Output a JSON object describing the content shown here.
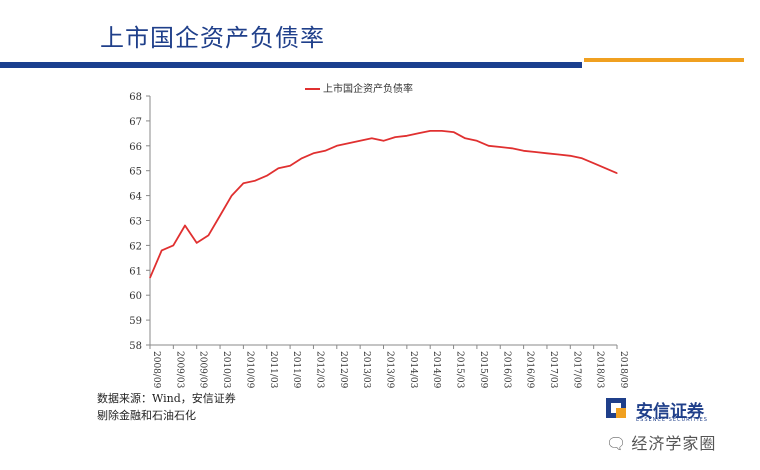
{
  "header": {
    "title": "上市国企资产负债率"
  },
  "colors": {
    "title": "#1f3f8a",
    "bar_blue": "#1a3f8f",
    "bar_orange": "#f0a020",
    "series": "#e03030",
    "axis": "#888888"
  },
  "chart_data": {
    "type": "line",
    "title": "",
    "xlabel": "",
    "ylabel": "",
    "ylim": [
      58,
      68
    ],
    "yticks": [
      58,
      59,
      60,
      61,
      62,
      63,
      64,
      65,
      66,
      67,
      68
    ],
    "grid": false,
    "legend_position": "top-center",
    "x_tick_labels": [
      "2008/09",
      "2009/03",
      "2009/09",
      "2010/03",
      "2010/09",
      "2011/03",
      "2011/09",
      "2012/03",
      "2012/09",
      "2013/03",
      "2013/09",
      "2014/03",
      "2014/09",
      "2015/03",
      "2015/09",
      "2016/03",
      "2016/09",
      "2017/03",
      "2017/09",
      "2018/03",
      "2018/09"
    ],
    "series": [
      {
        "name": "上市国企资产负债率",
        "x": [
          "2008/09",
          "2008/12",
          "2009/03",
          "2009/06",
          "2009/09",
          "2009/12",
          "2010/03",
          "2010/06",
          "2010/09",
          "2010/12",
          "2011/03",
          "2011/06",
          "2011/09",
          "2011/12",
          "2012/03",
          "2012/06",
          "2012/09",
          "2012/12",
          "2013/03",
          "2013/06",
          "2013/09",
          "2013/12",
          "2014/03",
          "2014/06",
          "2014/09",
          "2014/12",
          "2015/03",
          "2015/06",
          "2015/09",
          "2015/12",
          "2016/03",
          "2016/06",
          "2016/09",
          "2016/12",
          "2017/03",
          "2017/06",
          "2017/09",
          "2017/12",
          "2018/03",
          "2018/06",
          "2018/09"
        ],
        "values": [
          60.7,
          61.8,
          62.0,
          62.8,
          62.1,
          62.4,
          63.2,
          64.0,
          64.5,
          64.6,
          64.8,
          65.1,
          65.2,
          65.5,
          65.7,
          65.8,
          66.0,
          66.1,
          66.2,
          66.3,
          66.2,
          66.35,
          66.4,
          66.5,
          66.6,
          66.6,
          66.55,
          66.3,
          66.2,
          66.0,
          65.95,
          65.9,
          65.8,
          65.75,
          65.7,
          65.65,
          65.6,
          65.5,
          65.3,
          65.1,
          64.9
        ]
      }
    ]
  },
  "source": {
    "line1": "数据来源：Wind，安信证券",
    "line2": "剔除金融和石油石化"
  },
  "logo": {
    "text": "安信证券",
    "sub": "ESSENCE SECURITIES"
  },
  "watermark": {
    "icon": "wechat-icon",
    "text": "经济学家圈"
  }
}
